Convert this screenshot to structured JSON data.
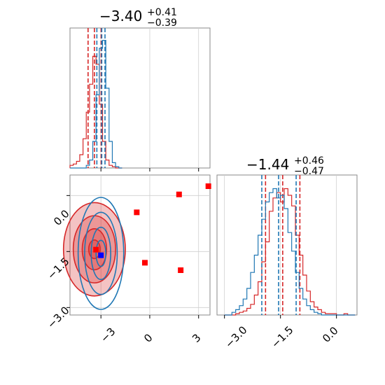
{
  "chart_data": [
    {
      "type": "histogram",
      "panel": "marginal-param1",
      "title": {
        "value": "−3.40",
        "plus": "+0.41",
        "minus": "−0.39"
      },
      "xlim": [
        -4.9,
        3.7
      ],
      "grid": true,
      "series": [
        {
          "color": "#d62728",
          "bins_x": [
            -4.9,
            -4.7,
            -4.5,
            -4.3,
            -4.1,
            -3.9,
            -3.7,
            -3.5,
            -3.3,
            -3.1,
            -2.9,
            -2.7,
            -2.5,
            -2.3,
            -2.1,
            -1.9
          ],
          "counts": [
            0.02,
            0.03,
            0.05,
            0.1,
            0.22,
            0.42,
            0.63,
            0.84,
            0.78,
            0.48,
            0.2,
            0.06,
            0.02,
            0.01,
            0,
            0
          ],
          "quantile_lines": [
            -3.79,
            -3.4,
            -2.99
          ]
        },
        {
          "color": "#1f77b4",
          "bins_x": [
            -4.9,
            -4.7,
            -4.5,
            -4.3,
            -4.1,
            -3.9,
            -3.7,
            -3.5,
            -3.3,
            -3.1,
            -2.9,
            -2.7,
            -2.5,
            -2.3,
            -2.1,
            -1.9
          ],
          "counts": [
            0,
            0,
            0,
            0,
            0,
            0.02,
            0.06,
            0.2,
            0.55,
            0.9,
            0.96,
            0.6,
            0.2,
            0.04,
            0.01,
            0
          ],
          "quantile_lines": [
            -3.25,
            -2.95,
            -2.75
          ]
        }
      ]
    },
    {
      "type": "scatter",
      "panel": "joint",
      "xlim": [
        -4.9,
        3.7
      ],
      "ylim": [
        -3.2,
        0.55
      ],
      "x_ticks": [
        "−3",
        "0",
        "3"
      ],
      "x_tick_values": [
        -3,
        0,
        3
      ],
      "y_ticks": [
        "0.0",
        "−1.5",
        "−3.0"
      ],
      "y_tick_values": [
        0.0,
        -1.5,
        -3.0
      ],
      "grid": true,
      "markers": [
        {
          "x": -0.8,
          "y": -0.45,
          "color": "#ff0000"
        },
        {
          "x": 1.8,
          "y": 0.03,
          "color": "#ff0000"
        },
        {
          "x": 3.6,
          "y": 0.25,
          "color": "#ff0000"
        },
        {
          "x": -0.3,
          "y": -1.8,
          "color": "#ff0000"
        },
        {
          "x": 1.9,
          "y": -2.0,
          "color": "#ff0000"
        },
        {
          "x": -3.3,
          "y": -1.45,
          "color": "#ff0000"
        },
        {
          "x": -3.0,
          "y": -1.6,
          "color": "#0000ff"
        }
      ],
      "contours": [
        {
          "color": "#d62728",
          "center": [
            -3.4,
            -1.44
          ],
          "widths": [
            1.9,
            1.3,
            0.75,
            0.35
          ],
          "heights": [
            1.25,
            0.9,
            0.55,
            0.25
          ]
        },
        {
          "color": "#1f77b4",
          "center": [
            -3.0,
            -1.55
          ],
          "widths": [
            1.4,
            1.0,
            0.6,
            0.3
          ],
          "heights": [
            1.5,
            1.1,
            0.7,
            0.35
          ]
        }
      ]
    },
    {
      "type": "histogram",
      "panel": "marginal-param2",
      "title": {
        "value": "−1.44",
        "plus": "+0.46",
        "minus": "−0.47"
      },
      "xlim": [
        -3.2,
        0.55
      ],
      "x_ticks": [
        "−3.0",
        "−1.5",
        "0.0"
      ],
      "x_tick_values": [
        -3.0,
        -1.5,
        0.0
      ],
      "grid": true,
      "series": [
        {
          "color": "#d62728",
          "bins_x": [
            -3.0,
            -2.9,
            -2.8,
            -2.7,
            -2.6,
            -2.5,
            -2.4,
            -2.3,
            -2.2,
            -2.1,
            -2.0,
            -1.9,
            -1.8,
            -1.7,
            -1.6,
            -1.5,
            -1.4,
            -1.3,
            -1.2,
            -1.1,
            -1.0,
            -0.9,
            -0.8,
            -0.7,
            -0.6,
            -0.5,
            -0.4,
            -0.3,
            -0.2,
            -0.1,
            0.0,
            0.1,
            0.2,
            0.3,
            0.4
          ],
          "counts": [
            0,
            0,
            0,
            0.01,
            0.02,
            0.03,
            0.05,
            0.08,
            0.15,
            0.25,
            0.4,
            0.55,
            0.78,
            0.88,
            0.92,
            0.85,
            0.95,
            0.9,
            0.82,
            0.6,
            0.45,
            0.3,
            0.18,
            0.1,
            0.06,
            0.04,
            0.02,
            0.01,
            0.01,
            0.01,
            0,
            0,
            0.01,
            0,
            0
          ],
          "quantile_lines": [
            -1.9,
            -1.44,
            -0.98
          ]
        },
        {
          "color": "#1f77b4",
          "bins_x": [
            -3.0,
            -2.9,
            -2.8,
            -2.7,
            -2.6,
            -2.5,
            -2.4,
            -2.3,
            -2.2,
            -2.1,
            -2.0,
            -1.9,
            -1.8,
            -1.7,
            -1.6,
            -1.5,
            -1.4,
            -1.3,
            -1.2,
            -1.1,
            -1.0,
            -0.9,
            -0.8,
            -0.7,
            -0.6,
            -0.5,
            -0.4,
            -0.3,
            -0.2,
            -0.1,
            0.0,
            0.1,
            0.2,
            0.3,
            0.4
          ],
          "counts": [
            0,
            0,
            0.02,
            0.04,
            0.07,
            0.12,
            0.2,
            0.32,
            0.45,
            0.6,
            0.72,
            0.85,
            0.92,
            0.95,
            0.88,
            0.9,
            0.8,
            0.62,
            0.48,
            0.32,
            0.2,
            0.12,
            0.07,
            0.04,
            0.02,
            0.01,
            0,
            0,
            0,
            0,
            0,
            0,
            0,
            0,
            0
          ],
          "quantile_lines": [
            -2.0,
            -1.55,
            -1.08
          ]
        }
      ]
    }
  ]
}
